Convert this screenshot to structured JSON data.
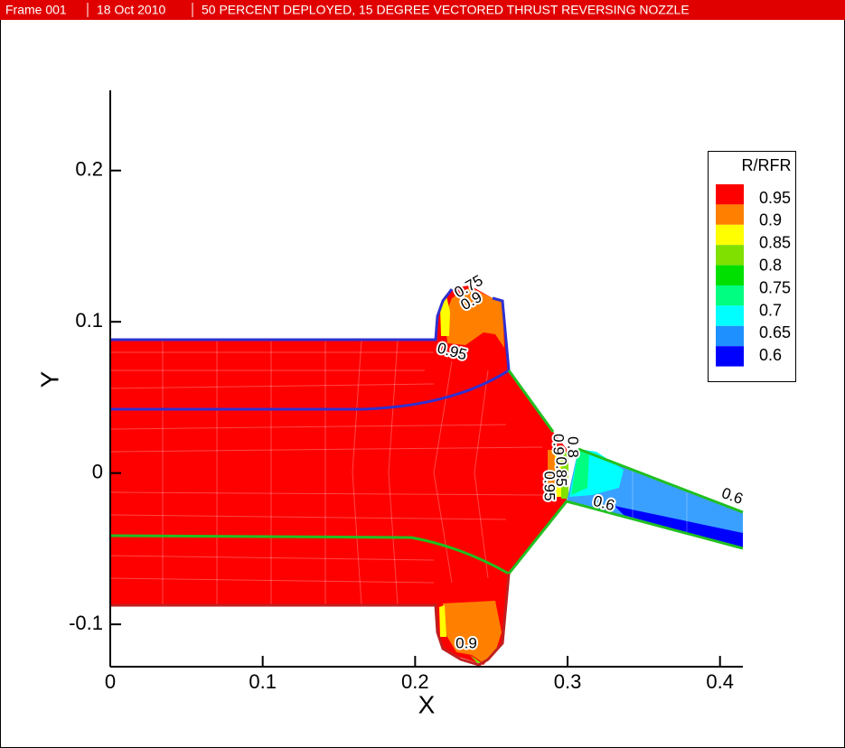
{
  "header": {
    "frame": "Frame 001",
    "date": "18 Oct 2010",
    "title": "50 PERCENT DEPLOYED, 15 DEGREE VECTORED THRUST REVERSING NOZZLE"
  },
  "chart_data": {
    "type": "contour",
    "xlabel": "X",
    "ylabel": "Y",
    "xlim": [
      0,
      0.415
    ],
    "ylim": [
      -0.128,
      0.253
    ],
    "xticks": [
      0,
      0.1,
      0.2,
      0.3,
      0.4
    ],
    "yticks": [
      -0.1,
      0,
      0.1,
      0.2
    ],
    "legend": {
      "title": "R/RFR",
      "position": "upper right",
      "levels": [
        0.95,
        0.9,
        0.85,
        0.8,
        0.75,
        0.7,
        0.65,
        0.6
      ],
      "band_colors": [
        "#ff0000",
        "#ff8000",
        "#ffff00",
        "#80e000",
        "#00e000",
        "#00ff80",
        "#00ffff",
        "#1e90ff",
        "#0000ff"
      ]
    },
    "contour_labels": [
      0.75,
      0.9,
      0.95,
      0.9,
      0.9,
      0.85,
      0.8,
      0.95,
      0.6,
      0.6
    ]
  }
}
